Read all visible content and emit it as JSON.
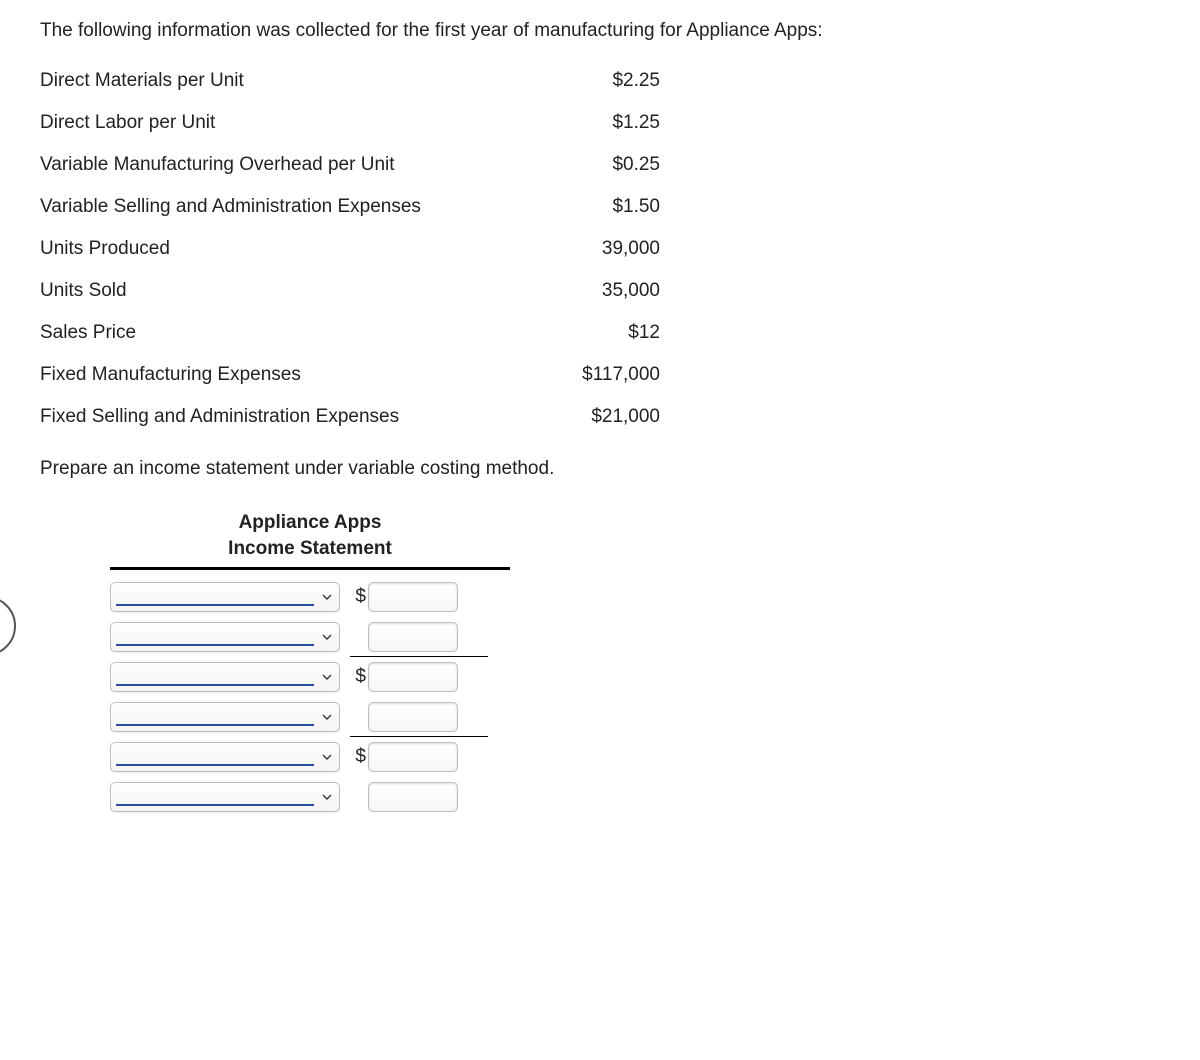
{
  "intro": "The following information was collected for the first year of manufacturing for Appliance Apps:",
  "data_rows": [
    {
      "label": "Direct Materials per Unit",
      "value": "$2.25"
    },
    {
      "label": "Direct Labor per Unit",
      "value": "$1.25"
    },
    {
      "label": "Variable Manufacturing Overhead per Unit",
      "value": "$0.25"
    },
    {
      "label": "Variable Selling and Administration Expenses",
      "value": "$1.50"
    },
    {
      "label": "Units Produced",
      "value": "39,000"
    },
    {
      "label": "Units Sold",
      "value": "35,000"
    },
    {
      "label": "Sales Price",
      "value": "$12"
    },
    {
      "label": "Fixed Manufacturing Expenses",
      "value": "$117,000"
    },
    {
      "label": "Fixed Selling and Administration Expenses",
      "value": "$21,000"
    }
  ],
  "instruction": "Prepare an income statement under variable costing method.",
  "statement": {
    "header_line1": "Appliance Apps",
    "header_line2": "Income Statement",
    "rows": [
      {
        "has_dollar": true,
        "subtotal_after": false
      },
      {
        "has_dollar": false,
        "subtotal_after": true
      },
      {
        "has_dollar": true,
        "subtotal_after": false
      },
      {
        "has_dollar": false,
        "subtotal_after": true
      },
      {
        "has_dollar": true,
        "subtotal_after": false
      },
      {
        "has_dollar": false,
        "subtotal_after": false
      }
    ]
  }
}
